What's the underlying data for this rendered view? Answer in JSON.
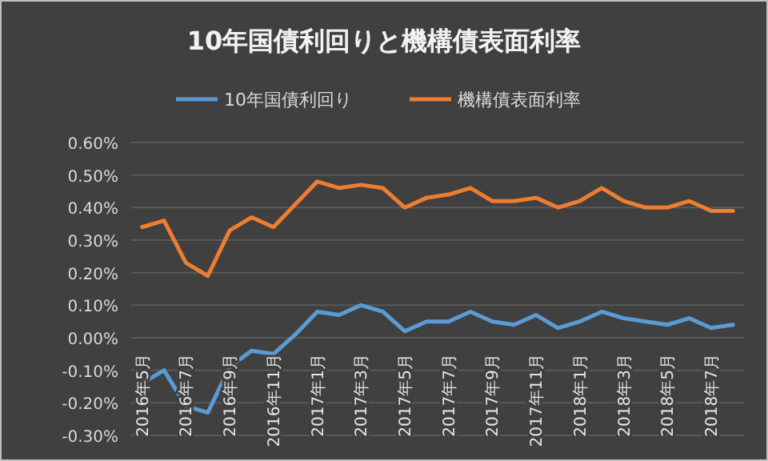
{
  "chart_data": {
    "type": "line",
    "title": "10年国債利回りと機構債表面利率",
    "categories": [
      "2016年5月",
      null,
      "2016年7月",
      null,
      "2016年9月",
      null,
      "2016年11月",
      null,
      "2017年1月",
      null,
      "2017年3月",
      null,
      "2017年5月",
      null,
      "2017年7月",
      null,
      "2017年9月",
      null,
      "2017年11月",
      null,
      "2018年1月",
      null,
      "2018年3月",
      null,
      "2018年5月",
      null,
      "2018年7月",
      null
    ],
    "series": [
      {
        "name": "10年国債利回り",
        "color": "#5b9bd5",
        "values": [
          -0.14,
          -0.1,
          -0.21,
          -0.23,
          -0.09,
          -0.04,
          -0.05,
          0.01,
          0.08,
          0.07,
          0.1,
          0.08,
          0.02,
          0.05,
          0.05,
          0.08,
          0.05,
          0.04,
          0.07,
          0.03,
          0.05,
          0.08,
          0.06,
          0.05,
          0.04,
          0.06,
          0.03,
          0.04
        ]
      },
      {
        "name": "機構債表面利率",
        "color": "#ed7d31",
        "values": [
          0.34,
          0.36,
          0.23,
          0.19,
          0.33,
          0.37,
          0.34,
          0.41,
          0.48,
          0.46,
          0.47,
          0.46,
          0.4,
          0.43,
          0.44,
          0.46,
          0.42,
          0.42,
          0.43,
          0.4,
          0.42,
          0.46,
          0.42,
          0.4,
          0.4,
          0.42,
          0.39,
          0.39
        ]
      }
    ],
    "ylim": [
      -0.3,
      0.6
    ],
    "yticks": [
      {
        "value": -0.3,
        "label": "-0.30%"
      },
      {
        "value": -0.2,
        "label": "-0.20%"
      },
      {
        "value": -0.1,
        "label": "-0.10%"
      },
      {
        "value": 0,
        "label": "0.00%"
      },
      {
        "value": 0.1,
        "label": "0.10%"
      },
      {
        "value": 0.2,
        "label": "0.20%"
      },
      {
        "value": 0.3,
        "label": "0.30%"
      },
      {
        "value": 0.4,
        "label": "0.40%"
      },
      {
        "value": 0.5,
        "label": "0.50%"
      },
      {
        "value": 0.6,
        "label": "0.60%"
      }
    ],
    "grid": "y",
    "legend": "top",
    "marker": "none",
    "line_style": "solid"
  }
}
